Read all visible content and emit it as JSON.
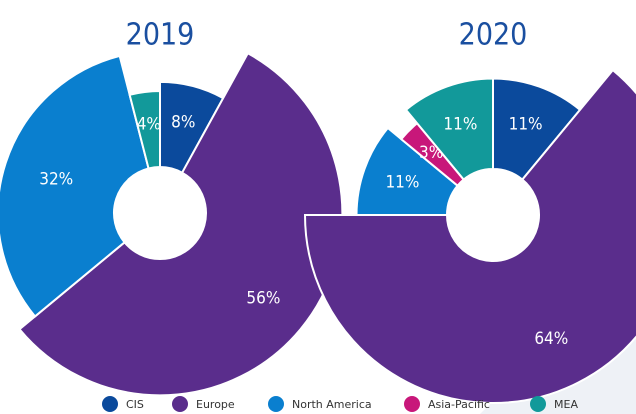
{
  "chart_data": [
    {
      "type": "pie",
      "title": "2019",
      "categories": [
        "CIS",
        "Europe",
        "North America",
        "MEA"
      ],
      "values": [
        8,
        56,
        32,
        4
      ],
      "value_labels": [
        "8%",
        "56%",
        "32%",
        "4%"
      ],
      "colors": [
        "#0b4a9c",
        "#5a2d8c",
        "#0a7fcf",
        "#12999a"
      ]
    },
    {
      "type": "pie",
      "title": "2020",
      "categories": [
        "CIS",
        "Europe",
        "North America",
        "Asia-Pacific",
        "MEA"
      ],
      "values": [
        11,
        64,
        11,
        3,
        11
      ],
      "value_labels": [
        "11%",
        "64%",
        "11%",
        "3%",
        "11%"
      ],
      "colors": [
        "#0b4a9c",
        "#5a2d8c",
        "#0a7fcf",
        "#c8177a",
        "#12999a"
      ]
    }
  ]
}
